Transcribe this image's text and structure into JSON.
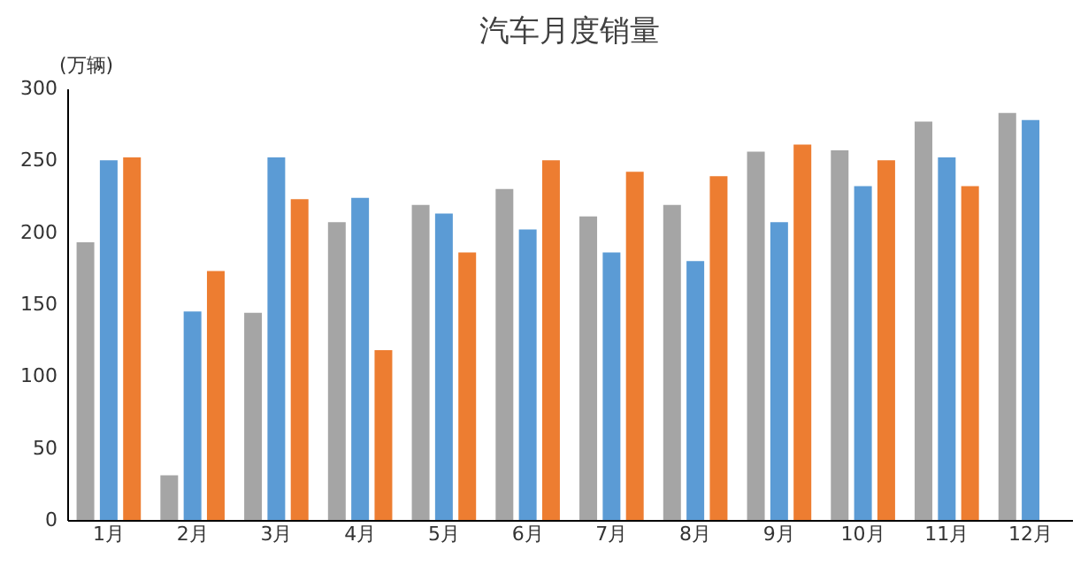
{
  "chart_data": {
    "type": "bar",
    "title": "汽车月度销量",
    "ylabel": "(万辆)",
    "categories": [
      "1月",
      "2月",
      "3月",
      "4月",
      "5月",
      "6月",
      "7月",
      "8月",
      "9月",
      "10月",
      "11月",
      "12月"
    ],
    "series": [
      {
        "color": "#a5a5a5",
        "values": [
          193,
          31,
          144,
          207,
          219,
          230,
          211,
          219,
          256,
          257,
          277,
          283
        ]
      },
      {
        "color": "#5b9bd5",
        "values": [
          250,
          145,
          252,
          224,
          213,
          202,
          186,
          180,
          207,
          232,
          252,
          278
        ]
      },
      {
        "color": "#ed7d31",
        "values": [
          252,
          173,
          223,
          118,
          186,
          250,
          242,
          239,
          261,
          250,
          232,
          null
        ]
      }
    ],
    "ylim": [
      0,
      300
    ],
    "yticks": [
      0,
      50,
      100,
      150,
      200,
      250,
      300
    ],
    "grid": false,
    "legend": false
  }
}
